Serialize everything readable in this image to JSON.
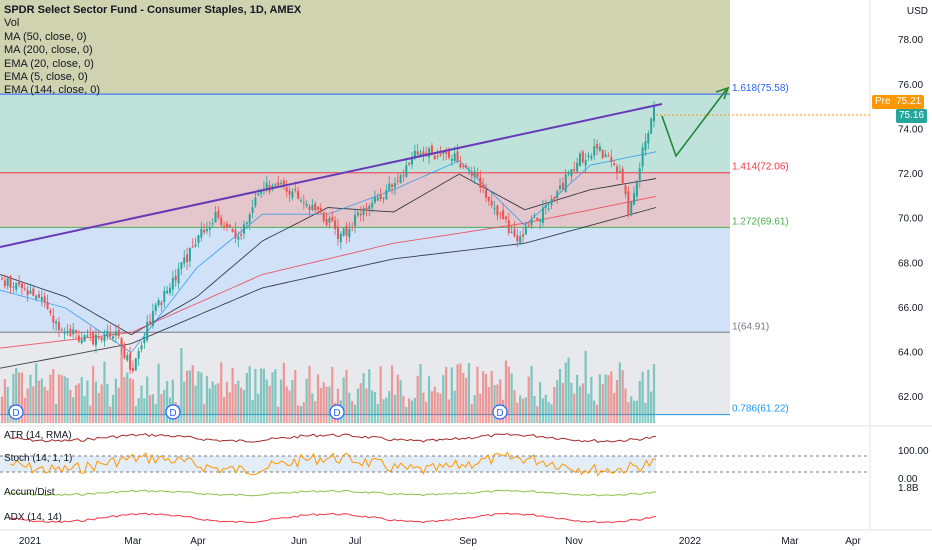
{
  "title": "SPDR Select Sector Fund - Consumer Staples, 1D, AMEX",
  "indicators": [
    "Vol",
    "MA (50, close, 0)",
    "MA (200, close, 0)",
    "EMA (20, close, 0)",
    "EMA (5, close, 0)",
    "EMA (144, close, 0)"
  ],
  "currency": "USD",
  "price_axis": {
    "labels": [
      "8",
      "78.00",
      "76.00",
      "74.00",
      "72.00",
      "70.00",
      "68.00",
      "66.00",
      "64.00",
      "62.00"
    ]
  },
  "fib_levels": [
    {
      "label": "1.618(75.58)",
      "value": 75.58,
      "color": "#2962ff"
    },
    {
      "label": "1.414(72.06)",
      "value": 72.06,
      "color": "#f23645"
    },
    {
      "label": "1.272(69.61)",
      "value": 69.61,
      "color": "#4caf50"
    },
    {
      "label": "1(64.91)",
      "value": 64.91,
      "color": "#787b86"
    },
    {
      "label": "0.786(61.22)",
      "value": 61.22,
      "color": "#2196f3"
    }
  ],
  "pre_label": "Pre",
  "pre_price": "75.21",
  "last_price": "75.16",
  "dividend_marker": "D",
  "sub_panes": [
    {
      "label": "ATR (14, RMA)"
    },
    {
      "label": "Stoch (14, 1, 1)",
      "axis": [
        "100.00",
        "0.00"
      ]
    },
    {
      "label": "Accum/Dist",
      "axis": [
        "1.8B"
      ]
    },
    {
      "label": "ADX (14, 14)"
    }
  ],
  "time_axis": [
    "2021",
    "Mar",
    "Apr",
    "Jun",
    "Jul",
    "Sep",
    "Nov",
    "2022",
    "Mar",
    "Apr"
  ],
  "chart_data": {
    "type": "candlestick",
    "title": "SPDR Select Sector Fund - Consumer Staples, 1D, AMEX",
    "ylim": [
      60.8,
      79.8
    ],
    "price_path": [
      [
        0,
        67.2
      ],
      [
        0.05,
        66.6
      ],
      [
        0.09,
        65.2
      ],
      [
        0.13,
        64.5
      ],
      [
        0.17,
        65.0
      ],
      [
        0.2,
        63.3
      ],
      [
        0.225,
        65.5
      ],
      [
        0.26,
        67.0
      ],
      [
        0.3,
        69.2
      ],
      [
        0.33,
        70.2
      ],
      [
        0.36,
        69.0
      ],
      [
        0.4,
        71.5
      ],
      [
        0.44,
        71.3
      ],
      [
        0.48,
        70.5
      ],
      [
        0.52,
        69.2
      ],
      [
        0.55,
        70.2
      ],
      [
        0.6,
        71.6
      ],
      [
        0.64,
        73.0
      ],
      [
        0.68,
        72.8
      ],
      [
        0.71,
        72.5
      ],
      [
        0.75,
        70.8
      ],
      [
        0.79,
        69.0
      ],
      [
        0.81,
        69.8
      ],
      [
        0.84,
        70.5
      ],
      [
        0.88,
        72.5
      ],
      [
        0.91,
        73.2
      ],
      [
        0.93,
        72.7
      ],
      [
        0.95,
        71.8
      ],
      [
        0.96,
        70.3
      ],
      [
        0.97,
        71.2
      ],
      [
        0.985,
        73.3
      ],
      [
        1.0,
        75.16
      ]
    ],
    "ma50_path": [
      [
        0,
        67.5
      ],
      [
        0.1,
        66.5
      ],
      [
        0.2,
        64.8
      ],
      [
        0.3,
        66.5
      ],
      [
        0.4,
        69.0
      ],
      [
        0.5,
        70.5
      ],
      [
        0.6,
        70.3
      ],
      [
        0.7,
        72.0
      ],
      [
        0.8,
        70.4
      ],
      [
        0.9,
        71.3
      ],
      [
        1.0,
        71.8
      ]
    ],
    "ma200_path": [
      [
        0,
        63.3
      ],
      [
        0.2,
        64.4
      ],
      [
        0.4,
        66.9
      ],
      [
        0.6,
        68.2
      ],
      [
        0.8,
        68.9
      ],
      [
        1.0,
        70.5
      ]
    ],
    "ema144_path": [
      [
        0,
        64.2
      ],
      [
        0.2,
        64.9
      ],
      [
        0.4,
        67.5
      ],
      [
        0.6,
        68.9
      ],
      [
        0.8,
        69.8
      ],
      [
        1.0,
        71.0
      ]
    ],
    "ema20_path": [
      [
        0,
        66.8
      ],
      [
        0.1,
        66.0
      ],
      [
        0.2,
        64.0
      ],
      [
        0.3,
        67.8
      ],
      [
        0.4,
        70.2
      ],
      [
        0.5,
        70.2
      ],
      [
        0.6,
        71.3
      ],
      [
        0.7,
        72.6
      ],
      [
        0.8,
        69.7
      ],
      [
        0.9,
        72.4
      ],
      [
        1.0,
        73.0
      ]
    ],
    "volume_profile": [
      0.2,
      0.6
    ]
  }
}
